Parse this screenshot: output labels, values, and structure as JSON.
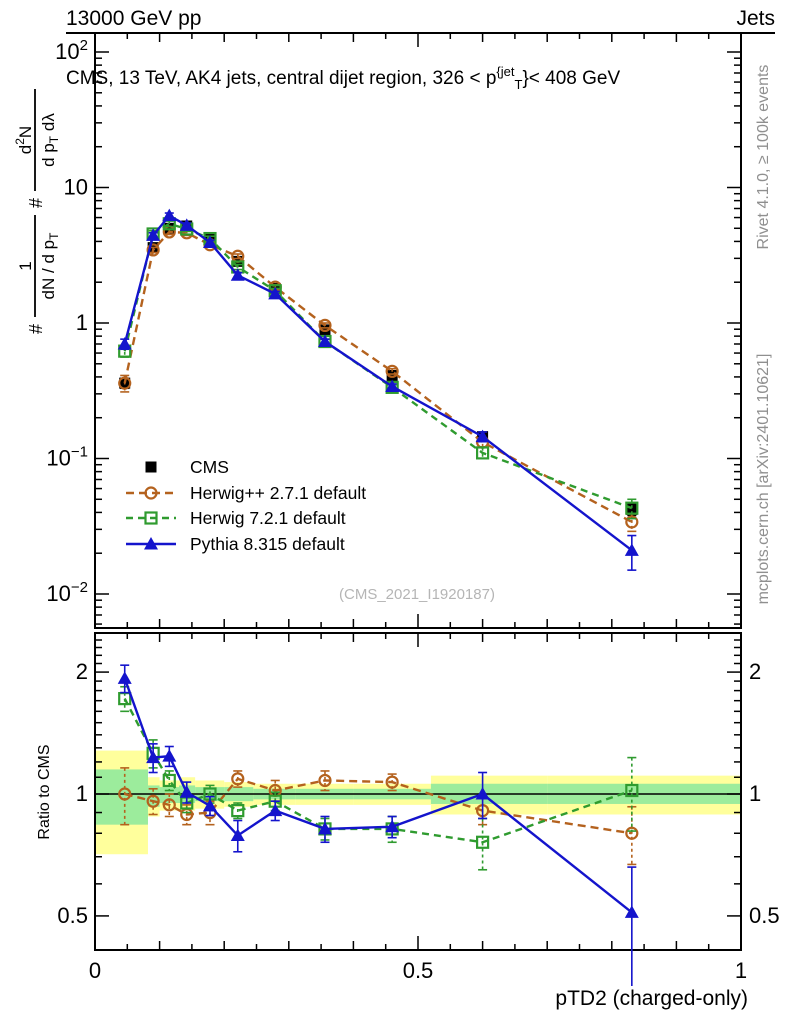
{
  "header": {
    "beam": "13000 GeV pp",
    "topic": "Jets"
  },
  "side_labels": {
    "rivet": "Rivet 4.1.0, ≥ 100k events",
    "mcplots": "mcplots.cern.ch [arXiv:2401.10621]"
  },
  "watermark": "(CMS_2021_I1920187)",
  "chart_data": {
    "type": "line",
    "title_tokens": [
      [
        "t",
        "CMS, 13 TeV, AK4 jets, central dijet region, 326 < p"
      ],
      [
        "sup",
        "{jet"
      ],
      [
        "sub",
        "T"
      ],
      [
        "t",
        "}< 408 GeV"
      ]
    ],
    "xlabel": "pTD2 (charged-only)",
    "ratio_ylabel": "Ratio to CMS",
    "ylabel": {
      "prefix": "#",
      "frac1": {
        "num": [
          [
            "t",
            "1"
          ]
        ],
        "den": [
          [
            "t",
            "dN / d p"
          ],
          [
            "sub",
            "T"
          ]
        ]
      },
      "mid": "#",
      "frac2": {
        "num": [
          [
            "t",
            "d"
          ],
          [
            "sup",
            "2"
          ],
          [
            "t",
            "N"
          ]
        ],
        "den": [
          [
            "t",
            "d p"
          ],
          [
            "sub",
            "T"
          ],
          [
            "t",
            " dλ"
          ]
        ]
      }
    },
    "x": [
      0.046,
      0.09,
      0.115,
      0.142,
      0.178,
      0.221,
      0.279,
      0.356,
      0.46,
      0.6,
      0.831
    ],
    "x_edges": [
      0.0,
      0.082,
      0.1,
      0.13,
      0.155,
      0.2,
      0.245,
      0.31,
      0.4,
      0.52,
      0.7,
      1.0
    ],
    "series": [
      {
        "name": "CMS",
        "color": "#000000",
        "marker": "square-filled",
        "line": "none",
        "dash": null,
        "values": [
          0.36,
          3.6,
          5.0,
          5.2,
          4.2,
          2.85,
          1.8,
          0.89,
          0.41,
          0.145,
          0.042
        ],
        "errors": [
          0.03,
          0.15,
          0.2,
          0.2,
          0.15,
          0.1,
          0.07,
          0.035,
          0.02,
          0.008,
          0.004
        ]
      },
      {
        "name": "Herwig++ 2.7.1 default",
        "color": "#b4621e",
        "marker": "circle-open",
        "line": "dashed",
        "dash": "8 5",
        "values": [
          0.36,
          3.46,
          4.7,
          4.63,
          3.78,
          3.11,
          1.84,
          0.96,
          0.44,
          0.132,
          0.034
        ],
        "errors": [
          0.05,
          0.15,
          0.2,
          0.2,
          0.15,
          0.12,
          0.08,
          0.04,
          0.02,
          0.01,
          0.005
        ]
      },
      {
        "name": "Herwig 7.2.1 default",
        "color": "#2f9b2f",
        "marker": "square-open",
        "line": "dashed",
        "dash": "7 5",
        "values": [
          0.62,
          4.54,
          5.4,
          4.94,
          4.2,
          2.59,
          1.73,
          0.73,
          0.335,
          0.11,
          0.043
        ],
        "errors": [
          0.06,
          0.25,
          0.25,
          0.2,
          0.17,
          0.11,
          0.07,
          0.03,
          0.015,
          0.01,
          0.007
        ]
      },
      {
        "name": "Pythia 8.315 default",
        "color": "#1414cc",
        "marker": "triangle-filled",
        "line": "solid",
        "dash": null,
        "values": [
          0.7,
          4.43,
          6.2,
          5.25,
          3.93,
          2.25,
          1.64,
          0.73,
          0.34,
          0.145,
          0.021
        ],
        "errors": [
          0.06,
          0.2,
          0.28,
          0.22,
          0.16,
          0.1,
          0.07,
          0.03,
          0.015,
          0.012,
          0.006
        ]
      }
    ],
    "ratio": {
      "series": [
        {
          "name": "Herwig++ 2.7.1 default",
          "values": [
            1.0,
            0.96,
            0.94,
            0.89,
            0.9,
            1.09,
            1.02,
            1.08,
            1.07,
            0.91,
            0.8
          ],
          "errors": [
            0.16,
            0.07,
            0.06,
            0.05,
            0.06,
            0.05,
            0.06,
            0.06,
            0.05,
            0.07,
            0.13
          ]
        },
        {
          "name": "Herwig 7.2.1 default",
          "values": [
            1.72,
            1.26,
            1.08,
            0.95,
            1.0,
            0.91,
            0.96,
            0.82,
            0.82,
            0.76,
            1.02
          ],
          "errors": [
            0.12,
            0.1,
            0.06,
            0.05,
            0.05,
            0.04,
            0.05,
            0.05,
            0.06,
            0.11,
            0.21
          ]
        },
        {
          "name": "Pythia 8.315 default",
          "values": [
            1.93,
            1.23,
            1.24,
            1.01,
            0.935,
            0.79,
            0.91,
            0.82,
            0.83,
            1.0,
            0.51
          ],
          "errors": [
            0.15,
            0.1,
            0.07,
            0.06,
            0.05,
            0.07,
            0.05,
            0.06,
            0.05,
            0.13,
            [
              0.28,
              0.15
            ]
          ]
        }
      ],
      "bands": {
        "yellow": {
          "color": "#ffff9c",
          "lo": [
            0.71,
            0.88,
            0.91,
            0.91,
            0.92,
            0.93,
            0.94,
            0.94,
            0.94,
            0.89,
            0.89
          ],
          "hi": [
            1.28,
            1.1,
            1.08,
            1.1,
            1.08,
            1.07,
            1.06,
            1.06,
            1.06,
            1.11,
            1.11
          ]
        },
        "green": {
          "color": "#9cec9c",
          "lo": [
            0.84,
            0.93,
            0.95,
            0.95,
            0.96,
            0.96,
            0.97,
            0.97,
            0.97,
            0.945,
            0.945
          ],
          "hi": [
            1.15,
            1.05,
            1.04,
            1.05,
            1.04,
            1.04,
            1.03,
            1.03,
            1.03,
            1.06,
            1.06
          ]
        }
      }
    },
    "axes": {
      "x": {
        "min": 0,
        "max": 1,
        "major_ticks": [
          0,
          0.5,
          1
        ],
        "labels": [
          "0",
          "0.5",
          "1"
        ]
      },
      "y_top": {
        "scale": "log",
        "min": 0.0054,
        "max": 138,
        "labeled_decades": [
          2,
          1,
          0,
          -1,
          -2
        ],
        "labels": {
          "2": [
            [
              "t",
              "10"
            ],
            [
              "sup",
              "2"
            ]
          ],
          "1": [
            [
              "t",
              "10"
            ]
          ],
          "0": [
            [
              "t",
              "1"
            ]
          ],
          "-1": [
            [
              "t",
              "10"
            ],
            [
              "sup",
              "−1"
            ]
          ],
          "-2": [
            [
              "t",
              "10"
            ],
            [
              "sup",
              "−2"
            ]
          ]
        }
      },
      "y_ratio": {
        "scale": "log",
        "min": 0.41,
        "max": 2.5,
        "major": [
          0.5,
          1,
          2
        ],
        "labels": [
          "0.5",
          "1",
          "2"
        ],
        "minor": [
          0.6,
          0.7,
          0.8,
          0.9,
          1.1,
          1.2,
          1.3,
          1.4,
          1.5,
          1.6,
          1.7,
          1.8,
          1.9,
          2.1,
          2.2,
          2.3,
          2.4
        ]
      }
    }
  }
}
